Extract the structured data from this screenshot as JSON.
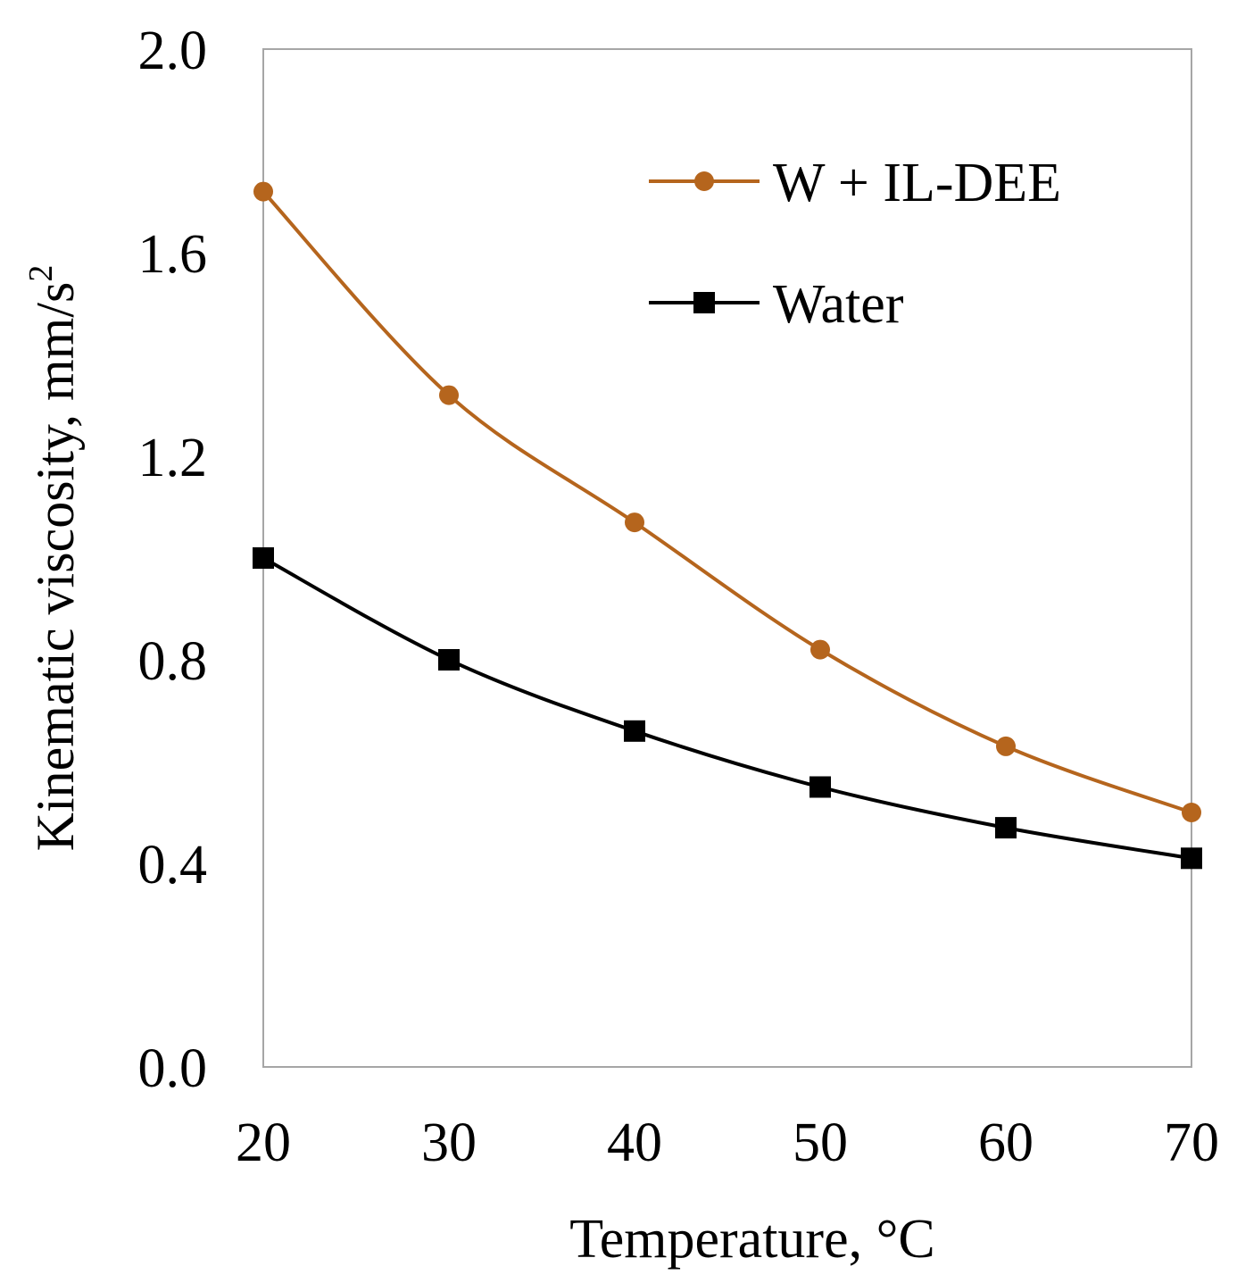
{
  "chart_data": {
    "type": "line",
    "x": [
      20,
      30,
      40,
      50,
      60,
      70
    ],
    "series": [
      {
        "name": "W + IL-DEE",
        "values": [
          1.72,
          1.32,
          1.07,
          0.82,
          0.63,
          0.5
        ],
        "color": "#b5651d",
        "marker": "circle"
      },
      {
        "name": "Water",
        "values": [
          1.0,
          0.8,
          0.66,
          0.55,
          0.47,
          0.41
        ],
        "color": "#000000",
        "marker": "square"
      }
    ],
    "xlabel": "Temperature, °C",
    "ylabel": "Kinematic viscosity, mm/s",
    "ylabel_superscript": "2",
    "xlim": [
      20,
      70
    ],
    "ylim": [
      0.0,
      2.0
    ],
    "xticks": [
      "20",
      "30",
      "40",
      "50",
      "60",
      "70"
    ],
    "yticks": [
      "0.0",
      "0.4",
      "0.8",
      "1.2",
      "1.6",
      "2.0"
    ],
    "grid": false,
    "legend_position": "top-right",
    "smooth": true
  }
}
